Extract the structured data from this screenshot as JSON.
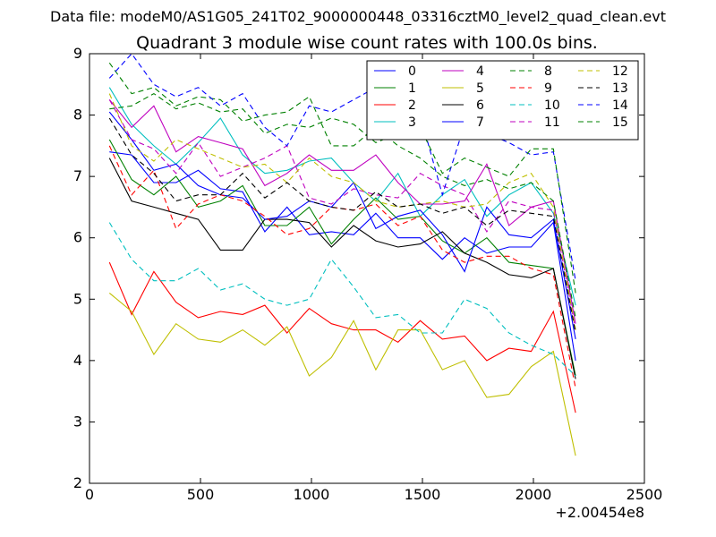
{
  "page": {
    "suptitle": "Data file: modeM0/AS1G05_241T02_9000000448_03316cztM0_level2_quad_clean.evt"
  },
  "chart_data": {
    "type": "line",
    "title": "Quadrant 3 module wise count rates with 100.0s bins.",
    "xlabel": "",
    "ylabel": "",
    "x_offset_label": "+2.00454e8",
    "xlim": [
      0,
      2500
    ],
    "ylim": [
      2,
      9
    ],
    "xticks": [
      0,
      500,
      1000,
      1500,
      2000,
      2500
    ],
    "yticks": [
      2,
      3,
      4,
      5,
      6,
      7,
      8,
      9
    ],
    "grid": false,
    "legend_position": "top-right",
    "legend_columns": 4,
    "x": [
      90,
      190,
      290,
      390,
      490,
      590,
      690,
      790,
      890,
      990,
      1090,
      1190,
      1290,
      1390,
      1490,
      1590,
      1690,
      1790,
      1890,
      1990,
      2090,
      2190
    ],
    "series": [
      {
        "name": "0",
        "color": "#0000ff",
        "dash": "solid",
        "values": [
          7.4,
          7.35,
          6.9,
          6.9,
          7.1,
          6.8,
          6.75,
          6.1,
          6.5,
          6.05,
          6.1,
          6.05,
          6.4,
          6.0,
          6.0,
          5.65,
          6.0,
          5.75,
          5.85,
          5.85,
          6.25,
          4.0
        ]
      },
      {
        "name": "1",
        "color": "#008000",
        "dash": "solid",
        "values": [
          7.6,
          6.95,
          6.7,
          7.0,
          6.5,
          6.6,
          6.85,
          6.2,
          6.2,
          6.5,
          5.9,
          6.3,
          6.65,
          6.3,
          6.35,
          5.95,
          5.75,
          6.0,
          5.6,
          5.55,
          5.5,
          3.75
        ]
      },
      {
        "name": "2",
        "color": "#ff0000",
        "dash": "solid",
        "values": [
          5.6,
          4.75,
          5.45,
          4.95,
          4.7,
          4.8,
          4.75,
          4.9,
          4.45,
          4.85,
          4.6,
          4.5,
          4.5,
          4.3,
          4.65,
          4.35,
          4.4,
          4.0,
          4.2,
          4.15,
          4.8,
          3.15
        ]
      },
      {
        "name": "3",
        "color": "#00bfbf",
        "dash": "solid",
        "values": [
          8.45,
          7.85,
          7.5,
          7.2,
          7.55,
          7.95,
          7.35,
          7.05,
          7.1,
          7.25,
          7.3,
          6.9,
          6.6,
          7.05,
          6.35,
          6.7,
          6.95,
          6.35,
          6.7,
          6.9,
          6.4,
          4.9
        ]
      },
      {
        "name": "4",
        "color": "#bf00bf",
        "dash": "solid",
        "values": [
          8.25,
          7.8,
          8.15,
          7.4,
          7.65,
          7.55,
          7.45,
          6.85,
          7.05,
          7.35,
          7.1,
          7.1,
          7.35,
          6.9,
          6.55,
          6.55,
          6.6,
          7.2,
          6.2,
          6.5,
          6.6,
          4.6
        ]
      },
      {
        "name": "5",
        "color": "#bfbf00",
        "dash": "solid",
        "values": [
          5.1,
          4.8,
          4.1,
          4.6,
          4.35,
          4.3,
          4.5,
          4.25,
          4.55,
          3.75,
          4.05,
          4.65,
          3.85,
          4.5,
          4.5,
          3.85,
          4.0,
          3.4,
          3.45,
          3.9,
          4.15,
          2.45
        ]
      },
      {
        "name": "6",
        "color": "#000000",
        "dash": "solid",
        "values": [
          7.3,
          6.6,
          6.5,
          6.4,
          6.3,
          5.8,
          5.8,
          6.3,
          6.3,
          6.25,
          5.85,
          6.2,
          5.95,
          5.85,
          5.9,
          6.1,
          5.75,
          5.6,
          5.4,
          5.35,
          5.5,
          3.7
        ]
      },
      {
        "name": "7",
        "color": "#0000ff",
        "dash": "solid",
        "values": [
          8.05,
          7.6,
          7.1,
          7.2,
          6.85,
          6.7,
          6.65,
          6.3,
          6.35,
          6.6,
          6.5,
          6.9,
          6.15,
          6.35,
          6.45,
          6.05,
          5.45,
          6.5,
          6.05,
          6.0,
          6.3,
          4.35
        ]
      },
      {
        "name": "8",
        "color": "#008000",
        "dash": "dashed",
        "values": [
          8.85,
          8.35,
          8.45,
          8.15,
          8.3,
          8.25,
          7.9,
          8.0,
          8.05,
          8.3,
          7.5,
          7.5,
          7.8,
          7.5,
          7.3,
          7.0,
          6.85,
          6.95,
          6.8,
          6.9,
          6.6,
          4.7
        ]
      },
      {
        "name": "9",
        "color": "#ff0000",
        "dash": "dashed",
        "values": [
          7.5,
          6.7,
          7.1,
          6.15,
          6.55,
          6.7,
          6.6,
          6.35,
          6.05,
          6.15,
          6.5,
          6.45,
          6.55,
          6.2,
          6.35,
          5.8,
          5.6,
          5.7,
          5.7,
          5.5,
          5.4,
          3.55
        ]
      },
      {
        "name": "10",
        "color": "#00bfbf",
        "dash": "dashed",
        "values": [
          6.25,
          5.65,
          5.3,
          5.3,
          5.5,
          5.15,
          5.25,
          5.0,
          4.9,
          5.0,
          5.65,
          5.2,
          4.7,
          4.75,
          4.45,
          4.45,
          5.0,
          4.85,
          4.45,
          4.25,
          4.1,
          3.75
        ]
      },
      {
        "name": "11",
        "color": "#bf00bf",
        "dash": "dashed",
        "values": [
          8.25,
          7.6,
          7.45,
          7.05,
          7.55,
          7.0,
          7.15,
          7.3,
          7.5,
          6.65,
          6.55,
          6.8,
          6.7,
          6.65,
          7.05,
          6.85,
          6.7,
          6.1,
          6.6,
          6.5,
          6.45,
          4.5
        ]
      },
      {
        "name": "12",
        "color": "#bfbf00",
        "dash": "dashed",
        "values": [
          8.35,
          7.5,
          7.25,
          7.6,
          7.45,
          7.3,
          7.15,
          7.2,
          6.9,
          7.3,
          7.0,
          6.9,
          6.6,
          6.5,
          6.55,
          6.6,
          6.5,
          6.55,
          6.9,
          7.05,
          6.5,
          4.5
        ]
      },
      {
        "name": "13",
        "color": "#000000",
        "dash": "dashed",
        "values": [
          7.95,
          7.35,
          7.05,
          6.6,
          6.7,
          6.7,
          7.05,
          6.65,
          6.9,
          6.6,
          6.5,
          6.45,
          6.75,
          6.5,
          6.55,
          6.4,
          6.5,
          6.2,
          6.45,
          6.4,
          6.35,
          4.45
        ]
      },
      {
        "name": "14",
        "color": "#0000ff",
        "dash": "dashed",
        "values": [
          8.6,
          9.0,
          8.5,
          8.3,
          8.45,
          8.15,
          8.35,
          7.8,
          7.5,
          8.15,
          8.05,
          8.25,
          8.45,
          8.0,
          8.0,
          6.7,
          7.85,
          7.7,
          7.55,
          7.35,
          7.4,
          5.3
        ]
      },
      {
        "name": "15",
        "color": "#008000",
        "dash": "dashed",
        "values": [
          8.1,
          8.15,
          8.35,
          8.1,
          8.2,
          8.05,
          8.1,
          7.7,
          7.85,
          7.8,
          7.95,
          7.85,
          7.55,
          7.7,
          7.8,
          7.05,
          7.3,
          7.15,
          7.0,
          7.45,
          7.45,
          5.1
        ]
      }
    ]
  }
}
